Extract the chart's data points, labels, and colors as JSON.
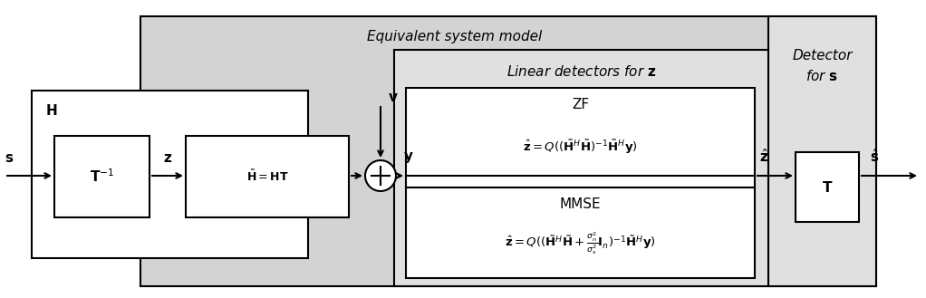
{
  "fig_width": 10.22,
  "fig_height": 3.29,
  "bg_color": "#ffffff",
  "gray_bg": "#d3d3d3",
  "light_gray_bg": "#e0e0e0",
  "white": "#ffffff",
  "black": "#000000",
  "title_equiv": "Equivalent system model",
  "title_linear": "Linear detectors for $\\mathbf{z}$",
  "zf_title": "ZF",
  "zf_eq": "$\\hat{\\mathbf{z}} = Q((\\tilde{\\mathbf{H}}^H\\tilde{\\mathbf{H}})^{-1}\\tilde{\\mathbf{H}}^H\\mathbf{y})$",
  "mmse_title": "MMSE",
  "mmse_eq": "$\\hat{\\mathbf{z}} = Q((\\tilde{\\mathbf{H}}^H\\tilde{\\mathbf{H}} + \\frac{\\sigma_n^2}{\\sigma_s^2}\\mathbf{I}_n)^{-1}\\tilde{\\mathbf{H}}^H\\mathbf{y})$",
  "label_s_in": "$\\mathbf{s}$",
  "label_Tinv": "$\\mathbf{T}^{-1}$",
  "label_z": "$\\mathbf{z}$",
  "label_Htilde": "$\\tilde{\\mathbf{H}} = \\mathbf{HT}$",
  "label_H": "$\\mathbf{H}$",
  "label_v": "$\\mathbf{v}$",
  "label_y": "$\\mathbf{y}$",
  "label_zhat": "$\\hat{\\mathbf{z}}$",
  "label_T": "$\\mathbf{T}$",
  "label_shat": "$\\hat{\\mathbf{s}}$",
  "label_detector": "Detector\nfor $\\mathbf{s}$"
}
